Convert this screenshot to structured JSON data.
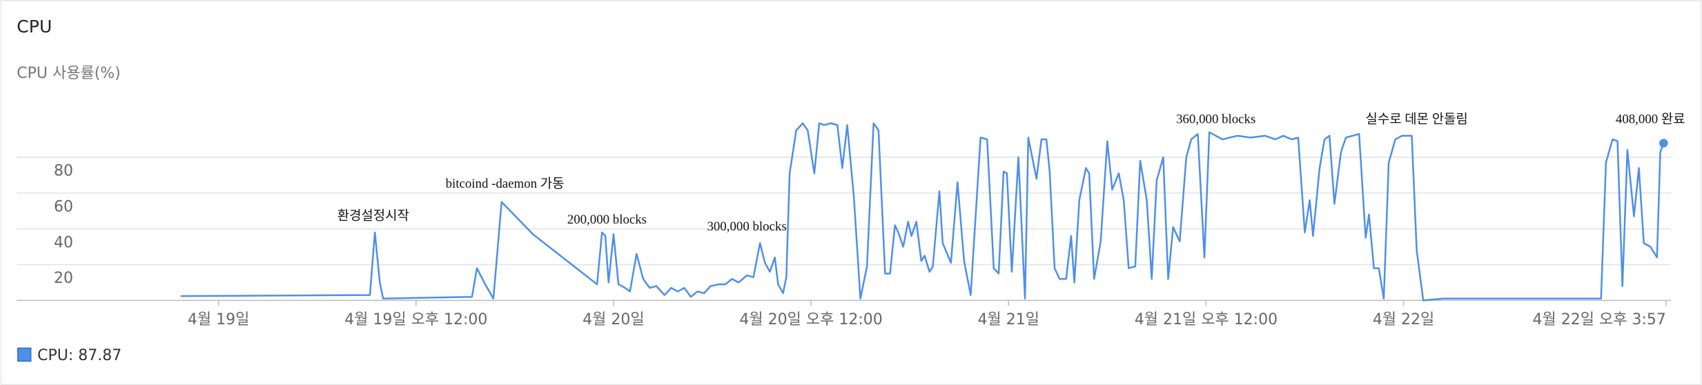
{
  "chart_data": {
    "type": "line",
    "title": "CPU",
    "y_label": "CPU 사용률(%)",
    "legend_text": "CPU: 87.87",
    "color": "#4f8fe8",
    "grid": true,
    "xlim": [
      -12.26,
      88.26
    ],
    "ylim": [
      0,
      100
    ],
    "xticks": [
      {
        "value": 0,
        "label": "4월 19일"
      },
      {
        "value": 12,
        "label": "4월 19일 오후 12:00"
      },
      {
        "value": 24,
        "label": "4월 20일"
      },
      {
        "value": 36,
        "label": "4월 20일 오후 12:00"
      },
      {
        "value": 48,
        "label": "4월 21일"
      },
      {
        "value": 60,
        "label": "4월 21일 오후 12:00"
      },
      {
        "value": 72,
        "label": "4월 22일"
      },
      {
        "value": 87.95,
        "label": "4월 22일 오후 3:57"
      }
    ],
    "yticks": [
      20,
      40,
      60,
      80
    ],
    "x": [
      -2.3,
      9.2,
      9.5,
      9.8,
      10.0,
      15.4,
      15.7,
      16.2,
      16.7,
      17.2,
      19.1,
      23.0,
      23.3,
      23.5,
      23.7,
      24.0,
      24.3,
      24.7,
      25.0,
      25.4,
      25.8,
      26.2,
      26.6,
      27.1,
      27.5,
      27.9,
      28.3,
      28.7,
      29.1,
      29.5,
      29.9,
      30.4,
      30.8,
      31.2,
      31.6,
      32.1,
      32.5,
      32.9,
      33.2,
      33.5,
      33.8,
      34.0,
      34.3,
      34.5,
      34.7,
      35.1,
      35.5,
      35.8,
      36.2,
      36.5,
      36.8,
      37.2,
      37.6,
      37.9,
      38.2,
      38.6,
      39.0,
      39.4,
      39.8,
      40.1,
      40.5,
      40.8,
      41.1,
      41.3,
      41.6,
      41.9,
      42.1,
      42.4,
      42.7,
      42.9,
      43.2,
      43.4,
      43.8,
      44.0,
      44.5,
      44.9,
      45.3,
      45.7,
      46.3,
      46.7,
      47.1,
      47.4,
      47.7,
      47.9,
      48.2,
      48.6,
      49.0,
      49.2,
      49.7,
      50.0,
      50.3,
      50.5,
      50.8,
      51.1,
      51.5,
      51.8,
      52.0,
      52.3,
      52.7,
      52.9,
      53.2,
      53.6,
      54.0,
      54.3,
      54.7,
      55.0,
      55.3,
      55.7,
      56.0,
      56.4,
      56.7,
      57.0,
      57.4,
      57.7,
      58.0,
      58.4,
      58.8,
      59.1,
      59.5,
      59.9,
      60.2,
      60.6,
      61.0,
      61.9,
      62.7,
      63.6,
      64.2,
      64.7,
      65.2,
      65.6,
      66.0,
      66.3,
      66.5,
      66.9,
      67.2,
      67.5,
      67.8,
      68.2,
      68.5,
      68.9,
      69.3,
      69.7,
      69.9,
      70.2,
      70.5,
      70.8,
      71.1,
      71.5,
      71.9,
      72.5,
      72.8,
      73.2,
      74.4,
      79.0,
      80.4,
      81.0,
      84.0,
      84.3,
      84.7,
      85.0,
      85.3,
      85.6,
      86.0,
      86.3,
      86.6,
      87.0,
      87.4,
      87.6,
      87.8
    ],
    "values": [
      2.4,
      3,
      38,
      10,
      1,
      2,
      18,
      9,
      1,
      55,
      37,
      9,
      38,
      36,
      10,
      37,
      9,
      7,
      5,
      26,
      12,
      7,
      8,
      3,
      7,
      5,
      7,
      2,
      5,
      4,
      8,
      9,
      9,
      12,
      10,
      14,
      13,
      32,
      21,
      16,
      24,
      9,
      4,
      13,
      71,
      95,
      99,
      95,
      71,
      99,
      98,
      99,
      98,
      74,
      98,
      58,
      1,
      19,
      99,
      95,
      15,
      15,
      42,
      38,
      30,
      44,
      36,
      44,
      22,
      25,
      16,
      19,
      61,
      32,
      21,
      66,
      22,
      3,
      91,
      90,
      18,
      15,
      72,
      71,
      16,
      80,
      1,
      91,
      68,
      90,
      90,
      72,
      18,
      12,
      12,
      36,
      10,
      56,
      74,
      71,
      12,
      33,
      89,
      62,
      71,
      56,
      18,
      19,
      78,
      56,
      12,
      67,
      80,
      12,
      41,
      33,
      80,
      90,
      93,
      24,
      94,
      92,
      90,
      92,
      91,
      92,
      90,
      92,
      90,
      91,
      38,
      56,
      36,
      74,
      90,
      92,
      54,
      83,
      91,
      92,
      93,
      35,
      48,
      18,
      18,
      1,
      77,
      90,
      92,
      92,
      28,
      0,
      1,
      1,
      1,
      1,
      1,
      77,
      90,
      89,
      8,
      84,
      47,
      74,
      32,
      30,
      24,
      83,
      87.87
    ],
    "annotations": [
      {
        "text": "환경설정시작",
        "x": 9.4,
        "y": 45
      },
      {
        "text": "bitcoind -daemon 가동",
        "x": 17.4,
        "y": 63
      },
      {
        "text": "200,000  blocks",
        "x": 23.6,
        "y": 43
      },
      {
        "text": "300,000 blocks",
        "x": 32.1,
        "y": 39
      },
      {
        "text": "360,000  blocks",
        "x": 60.6,
        "y": 99
      },
      {
        "text": "실수로 데몬 안돌림",
        "x": 72.8,
        "y": 99
      },
      {
        "text": "408,000 완료",
        "x": 87.0,
        "y": 99
      }
    ]
  }
}
